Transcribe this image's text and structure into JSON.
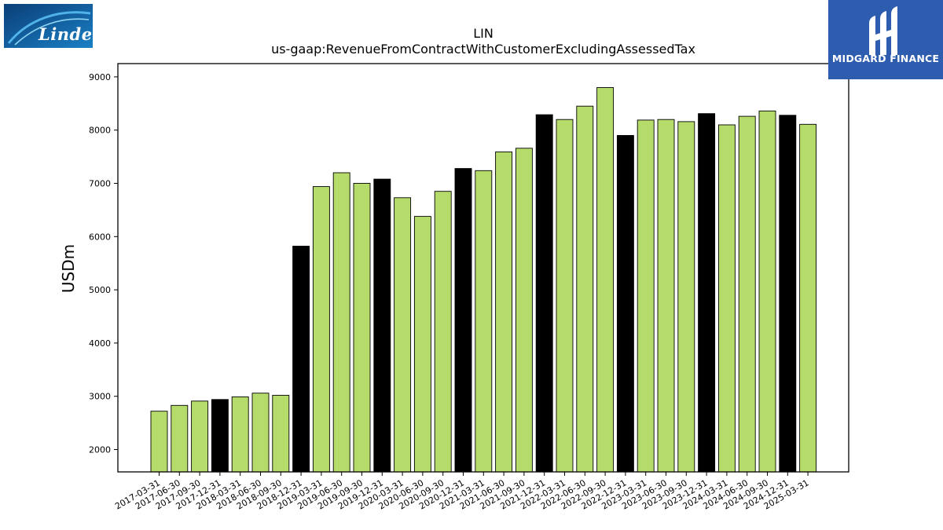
{
  "logos": {
    "left_text": "Linde",
    "right_text": "MIDGARD FINANCE"
  },
  "colors": {
    "default_bar": "#b5dc6b",
    "q4_bar": "#000000",
    "axis": "#000000",
    "right_logo_bg": "#2e5db0",
    "left_logo_bg": "#0f5f9c"
  },
  "chart_data": {
    "type": "bar",
    "title": "LIN",
    "subtitle": "us-gaap:RevenueFromContractWithCustomerExcludingAssessedTax",
    "xlabel": "",
    "ylabel": "USDm",
    "ylim": [
      1580,
      9250
    ],
    "yticks": [
      2000,
      3000,
      4000,
      5000,
      6000,
      7000,
      8000,
      9000
    ],
    "grid": false,
    "categories": [
      "2017-03-31",
      "2017-06-30",
      "2017-09-30",
      "2017-12-31",
      "2018-03-31",
      "2018-06-30",
      "2018-09-30",
      "2018-12-31",
      "2019-03-31",
      "2019-06-30",
      "2019-09-30",
      "2019-12-31",
      "2020-03-31",
      "2020-06-30",
      "2020-09-30",
      "2020-12-31",
      "2021-03-31",
      "2021-06-30",
      "2021-09-30",
      "2021-12-31",
      "2022-03-31",
      "2022-06-30",
      "2022-09-30",
      "2022-12-31",
      "2023-03-31",
      "2023-06-30",
      "2023-09-30",
      "2023-12-31",
      "2024-03-31",
      "2024-06-30",
      "2024-09-30",
      "2024-12-31",
      "2025-03-31"
    ],
    "values": [
      2720,
      2830,
      2910,
      2940,
      2990,
      3060,
      3020,
      5820,
      6940,
      7200,
      7000,
      7080,
      6730,
      6380,
      6850,
      7280,
      7240,
      7590,
      7660,
      8290,
      8200,
      8450,
      8800,
      7900,
      8190,
      8200,
      8160,
      8310,
      8100,
      8260,
      8360,
      8280,
      8110
    ],
    "highlight_q4": true
  }
}
